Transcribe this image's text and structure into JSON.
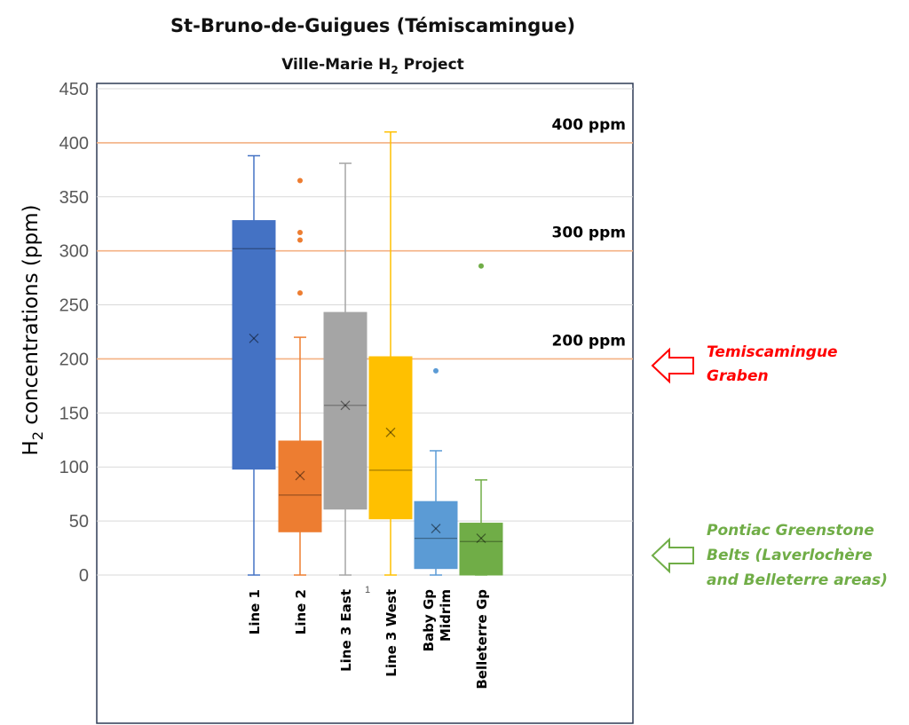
{
  "chart_data": {
    "type": "box",
    "title": "St-Bruno-de-Guigues (Témiscamingue)",
    "subtitle": {
      "main": "Ville-Marie H",
      "sub": "2",
      "rest": " Project"
    },
    "ylabel": {
      "main": "H",
      "sub": "2",
      "rest": " concentrations (ppm)"
    },
    "ylim": [
      0,
      450
    ],
    "yticks": [
      0,
      50,
      100,
      150,
      200,
      250,
      300,
      350,
      400,
      450
    ],
    "grid": true,
    "reference_lines": [
      {
        "value": 400,
        "label": "400 ppm"
      },
      {
        "value": 300,
        "label": "300 ppm"
      },
      {
        "value": 200,
        "label": "200 ppm"
      }
    ],
    "categories": [
      [
        "Line 1"
      ],
      [
        "Line 2"
      ],
      [
        "Line 3 East"
      ],
      [
        "Line 3 West"
      ],
      [
        "Baby Gp",
        "Midrim"
      ],
      [
        "Belleterre Gp"
      ]
    ],
    "series": [
      {
        "min": 0,
        "q1": 98,
        "median": 302,
        "q3": 328,
        "max": 388,
        "mean": 219,
        "outliers": [],
        "color": "#4472C4"
      },
      {
        "min": 0,
        "q1": 40,
        "median": 74,
        "q3": 124,
        "max": 220,
        "mean": 92,
        "outliers": [
          261,
          310,
          317,
          365
        ],
        "color": "#ED7D31"
      },
      {
        "min": 0,
        "q1": 61,
        "median": 157,
        "q3": 243,
        "max": 381,
        "mean": 157,
        "outliers": [],
        "color": "#A5A5A5"
      },
      {
        "min": 0,
        "q1": 52,
        "median": 97,
        "q3": 202,
        "max": 410,
        "mean": 132,
        "outliers": [],
        "color": "#FFC000"
      },
      {
        "min": 0,
        "q1": 6,
        "median": 34,
        "q3": 68,
        "max": 115,
        "mean": 43,
        "outliers": [
          189
        ],
        "color": "#5B9BD5"
      },
      {
        "min": 0,
        "q1": 0,
        "median": 31,
        "q3": 48,
        "max": 88,
        "mean": 34,
        "outliers": [
          286
        ],
        "color": "#70AD47"
      }
    ],
    "stray_label": "1",
    "annotations": [
      {
        "lines": [
          "Temiscamingue",
          "Graben"
        ],
        "color": "#FF0000",
        "arrow_color": "#FF0000",
        "points_to": 200
      },
      {
        "lines": [
          "Pontiac Greenstone",
          "Belts (Laverlochère",
          "and Belleterre areas)"
        ],
        "color": "#70AD47",
        "arrow_color": "#70AD47",
        "points_to": 25
      }
    ]
  }
}
